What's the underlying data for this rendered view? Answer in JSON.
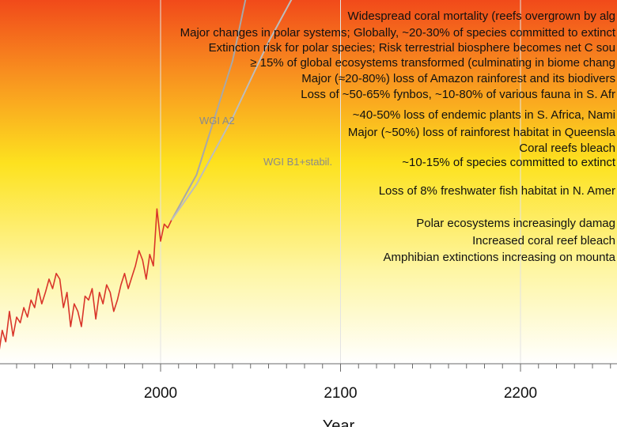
{
  "chart_data": {
    "type": "line",
    "xlabel": "Year",
    "x_ticks": [
      2000,
      2100,
      2200
    ],
    "xlim": [
      1910,
      2254
    ],
    "background_gradient": {
      "stops": [
        {
          "offset": 0.0,
          "color": "#f14a1a"
        },
        {
          "offset": 0.2,
          "color": "#f88f1f"
        },
        {
          "offset": 0.45,
          "color": "#fde21f"
        },
        {
          "offset": 0.75,
          "color": "#fef6a6"
        },
        {
          "offset": 1.0,
          "color": "#ffffff"
        }
      ]
    },
    "observed": {
      "color": "#d9352a",
      "x": [
        1910,
        1912,
        1914,
        1916,
        1918,
        1920,
        1922,
        1924,
        1926,
        1928,
        1930,
        1932,
        1934,
        1936,
        1938,
        1940,
        1942,
        1944,
        1946,
        1948,
        1950,
        1952,
        1954,
        1956,
        1958,
        1960,
        1962,
        1964,
        1966,
        1968,
        1970,
        1972,
        1974,
        1976,
        1978,
        1980,
        1982,
        1984,
        1986,
        1988,
        1990,
        1992,
        1994,
        1996,
        1998,
        2000,
        2002,
        2004,
        2006
      ],
      "y": [
        -0.05,
        0.08,
        0.02,
        0.18,
        0.05,
        0.15,
        0.12,
        0.2,
        0.15,
        0.24,
        0.2,
        0.3,
        0.22,
        0.28,
        0.35,
        0.3,
        0.38,
        0.35,
        0.2,
        0.28,
        0.1,
        0.22,
        0.18,
        0.1,
        0.26,
        0.24,
        0.3,
        0.14,
        0.28,
        0.22,
        0.32,
        0.28,
        0.18,
        0.24,
        0.32,
        0.38,
        0.3,
        0.36,
        0.42,
        0.5,
        0.45,
        0.35,
        0.48,
        0.42,
        0.72,
        0.55,
        0.64,
        0.62,
        0.66
      ]
    },
    "series": [
      {
        "name": "WGI A2",
        "color": "#a8a8a8",
        "x": [
          2006,
          2020,
          2040,
          2060,
          2080
        ],
        "y": [
          0.66,
          0.9,
          1.5,
          2.4,
          3.6
        ]
      },
      {
        "name": "WGI B1+stabil.",
        "color": "#bdbdbd",
        "x": [
          2006,
          2020,
          2040,
          2060,
          2080,
          2100,
          2120,
          2140
        ],
        "y": [
          0.66,
          0.85,
          1.2,
          1.6,
          1.95,
          2.25,
          2.5,
          2.7
        ]
      }
    ],
    "annotations": [
      "Widespread coral mortality (reefs overgrown by alg",
      "Major changes in polar systems;  Globally, ~20-30% of species committed to extinct",
      "Extinction risk for polar species;  Risk terrestrial biosphere becomes net C sou",
      "≥ 15% of global ecosystems transformed (culminating in biome chang",
      "Major (≈20-80%) loss of Amazon rainforest and its biodivers",
      "Loss of ~50-65% fynbos, ~10-80% of various fauna in S. Afr",
      "~40-50% loss of endemic plants in S. Africa, Nami",
      "Major (~50%) loss of rainforest habitat in Queensla",
      "Coral reefs bleach",
      "~10-15% of species committed to extinct",
      "Loss of 8% freshwater fish habitat in N. Amer",
      "Polar ecosystems increasingly damag",
      "Increased coral reef bleach",
      "Amphibian extinctions increasing on mounta"
    ]
  }
}
